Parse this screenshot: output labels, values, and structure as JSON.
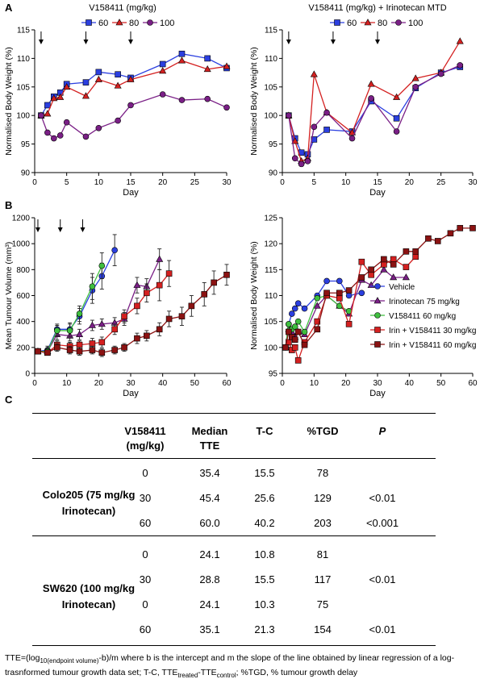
{
  "panel_labels": {
    "a": "A",
    "b": "B",
    "c": "C"
  },
  "colors": {
    "blue": "#2b3fe0",
    "red": "#d42020",
    "purple": "#7a1f86",
    "green": "#3fbf3f",
    "darkred": "#8b1212",
    "black": "#000000"
  },
  "chart_data": [
    {
      "id": "a1",
      "type": "line",
      "title": "V158411 (mg/kg)",
      "legend": [
        "60",
        "80",
        "100"
      ],
      "xlabel": "Day",
      "ylabel": "Normalised Body Weight (%)",
      "xlim": [
        0,
        30
      ],
      "ylim": [
        90,
        115
      ],
      "xticks": [
        0,
        5,
        10,
        15,
        20,
        25,
        30
      ],
      "yticks": [
        90,
        95,
        100,
        105,
        110,
        115
      ],
      "arrows_x": [
        1,
        8,
        15
      ],
      "series": [
        {
          "name": "60",
          "color": "blue",
          "marker": "square",
          "x": [
            1,
            2,
            3,
            4,
            5,
            8,
            10,
            13,
            15,
            20,
            23,
            27,
            30
          ],
          "y": [
            100,
            101.8,
            103.3,
            104,
            105.5,
            105.8,
            107.6,
            107.2,
            106.6,
            109,
            110.8,
            110,
            108.3
          ]
        },
        {
          "name": "80",
          "color": "red",
          "marker": "triangle",
          "x": [
            1,
            2,
            3,
            4,
            5,
            8,
            10,
            13,
            15,
            20,
            23,
            27,
            30
          ],
          "y": [
            100,
            100.3,
            103,
            103.2,
            105,
            103.4,
            106.3,
            105.2,
            106.3,
            107.8,
            109.6,
            108.1,
            108.6
          ]
        },
        {
          "name": "100",
          "color": "purple",
          "marker": "circle",
          "x": [
            1,
            2,
            3,
            4,
            5,
            8,
            10,
            13,
            15,
            20,
            23,
            27,
            30
          ],
          "y": [
            100,
            97,
            96,
            96.5,
            98.8,
            96.3,
            97.8,
            99.1,
            101.8,
            103.7,
            102.7,
            102.9,
            101.4
          ]
        }
      ]
    },
    {
      "id": "a2",
      "type": "line",
      "title": "V158411 (mg/kg) + Irinotecan MTD",
      "legend": [
        "60",
        "80",
        "100"
      ],
      "xlabel": "Day",
      "ylabel": "Normalised Body Weight (%)",
      "xlim": [
        0,
        30
      ],
      "ylim": [
        90,
        115
      ],
      "xticks": [
        0,
        5,
        10,
        15,
        20,
        25,
        30
      ],
      "yticks": [
        90,
        95,
        100,
        105,
        110,
        115
      ],
      "arrows_x": [
        1,
        8,
        15
      ],
      "series": [
        {
          "name": "60",
          "color": "blue",
          "marker": "square",
          "x": [
            1,
            2,
            3,
            4,
            5,
            7,
            11,
            14,
            18,
            21,
            25,
            28
          ],
          "y": [
            100,
            96,
            93.5,
            93.2,
            95.8,
            97.5,
            97.2,
            102.5,
            99.5,
            104.8,
            107.5,
            108.5
          ]
        },
        {
          "name": "80",
          "color": "red",
          "marker": "triangle",
          "x": [
            1,
            2,
            3,
            4,
            5,
            7,
            11,
            14,
            18,
            21,
            25,
            28
          ],
          "y": [
            100,
            95.5,
            92,
            92.5,
            107.2,
            100.5,
            97,
            105.5,
            103.2,
            106.5,
            107.5,
            113
          ]
        },
        {
          "name": "100",
          "color": "purple",
          "marker": "circle",
          "x": [
            1,
            2,
            3,
            4,
            5,
            7,
            11,
            14,
            18,
            21,
            25,
            28
          ],
          "y": [
            100,
            92.5,
            91.5,
            92,
            98,
            100.5,
            96,
            103,
            97.2,
            105,
            107.3,
            108.8
          ]
        }
      ]
    },
    {
      "id": "b1",
      "type": "line",
      "xlabel": "Day",
      "ylabel": "Mean Tumour Volume (mm³)",
      "xlim": [
        0,
        60
      ],
      "ylim": [
        0,
        1200
      ],
      "xticks": [
        0,
        10,
        20,
        30,
        40,
        50,
        60
      ],
      "yticks": [
        0,
        200,
        400,
        600,
        800,
        1000,
        1200
      ],
      "arrows_x": [
        1,
        8,
        15
      ],
      "series": [
        {
          "name": "Vehicle",
          "color": "blue",
          "marker": "circle",
          "x": [
            1,
            4,
            7,
            11,
            14,
            18,
            21,
            25
          ],
          "y": [
            170,
            180,
            340,
            340,
            440,
            640,
            750,
            950
          ],
          "err": [
            10,
            30,
            40,
            50,
            60,
            100,
            100,
            120
          ]
        },
        {
          "name": "Irinotecan 75 mg/kg",
          "color": "purple",
          "marker": "triangle",
          "x": [
            1,
            4,
            7,
            11,
            14,
            18,
            21,
            25,
            28,
            32,
            35,
            39
          ],
          "y": [
            170,
            170,
            300,
            290,
            300,
            370,
            380,
            390,
            420,
            680,
            670,
            880
          ],
          "err": [
            10,
            20,
            40,
            40,
            40,
            40,
            40,
            40,
            50,
            60,
            60,
            80
          ]
        },
        {
          "name": "V158411 60 mg/kg",
          "color": "green",
          "marker": "circle",
          "x": [
            1,
            4,
            7,
            11,
            14,
            18,
            21
          ],
          "y": [
            170,
            170,
            330,
            330,
            460,
            670,
            830
          ],
          "err": [
            10,
            25,
            40,
            50,
            60,
            100,
            100
          ]
        },
        {
          "name": "Irin + V158411 30 mg/kg",
          "color": "red",
          "marker": "square",
          "x": [
            1,
            4,
            7,
            11,
            14,
            18,
            21,
            25,
            28,
            32,
            35,
            39,
            42
          ],
          "y": [
            170,
            160,
            220,
            210,
            220,
            230,
            240,
            340,
            440,
            520,
            620,
            680,
            770
          ],
          "err": [
            10,
            20,
            30,
            30,
            30,
            40,
            40,
            40,
            50,
            60,
            70,
            120,
            100
          ]
        },
        {
          "name": "Irin + V158411 60 mg/kg",
          "color": "darkred",
          "marker": "square",
          "x": [
            1,
            4,
            7,
            11,
            14,
            18,
            21,
            25,
            28,
            32,
            35,
            39,
            42,
            46,
            49,
            53,
            56,
            60
          ],
          "y": [
            170,
            160,
            200,
            180,
            170,
            180,
            160,
            180,
            200,
            270,
            290,
            340,
            420,
            440,
            520,
            610,
            700,
            760
          ],
          "err": [
            10,
            20,
            30,
            30,
            30,
            30,
            30,
            30,
            30,
            40,
            40,
            50,
            60,
            70,
            80,
            90,
            90,
            80
          ]
        }
      ]
    },
    {
      "id": "b2",
      "type": "line",
      "xlabel": "Day",
      "ylabel": "Normalised Body Weight (%)",
      "xlim": [
        0,
        60
      ],
      "ylim": [
        95,
        125
      ],
      "xticks": [
        0,
        10,
        20,
        30,
        40,
        50,
        60
      ],
      "yticks": [
        95,
        100,
        105,
        110,
        115,
        120,
        125
      ],
      "series": [
        {
          "name": "Vehicle",
          "color": "blue",
          "marker": "circle",
          "x": [
            1,
            2,
            3,
            4,
            5,
            7,
            11,
            14,
            18,
            21,
            25
          ],
          "y": [
            100,
            104.5,
            106.5,
            107.5,
            108.5,
            107.5,
            110,
            112.8,
            112.8,
            110,
            110.5
          ]
        },
        {
          "name": "Irinotecan 75 mg/kg",
          "color": "purple",
          "marker": "triangle",
          "x": [
            1,
            2,
            3,
            4,
            5,
            7,
            11,
            14,
            18,
            21,
            25,
            28,
            32,
            35,
            39
          ],
          "y": [
            100,
            103.5,
            103,
            102,
            103,
            102.5,
            108,
            110,
            108,
            106.5,
            113,
            112,
            115,
            113.5,
            113.5
          ]
        },
        {
          "name": "V158411 60 mg/kg",
          "color": "green",
          "marker": "circle",
          "x": [
            1,
            2,
            3,
            4,
            5,
            7,
            11,
            14,
            18,
            21
          ],
          "y": [
            100,
            104.5,
            103.5,
            104,
            105,
            103,
            109.5,
            110,
            108,
            107
          ]
        },
        {
          "name": "Irin + V158411 30 mg/kg",
          "color": "red",
          "marker": "square",
          "x": [
            1,
            2,
            3,
            4,
            5,
            7,
            11,
            14,
            18,
            21,
            25,
            28,
            32,
            35,
            39,
            42
          ],
          "y": [
            100,
            101,
            99.5,
            100,
            97.5,
            101,
            105,
            110,
            109.5,
            104.5,
            116.5,
            114,
            116,
            117,
            115.5,
            117.5
          ]
        },
        {
          "name": "Irin + V158411 60 mg/kg",
          "color": "darkred",
          "marker": "square",
          "x": [
            1,
            2,
            3,
            4,
            5,
            7,
            11,
            14,
            18,
            21,
            25,
            28,
            32,
            35,
            39,
            42,
            46,
            49,
            53,
            56,
            60
          ],
          "y": [
            100,
            103,
            102,
            101.5,
            103,
            100.5,
            103.5,
            110.5,
            110.5,
            111,
            113.5,
            115,
            117,
            116,
            118.5,
            118.5,
            121,
            120.5,
            122,
            123,
            123
          ]
        }
      ]
    }
  ],
  "table": {
    "headers": [
      "V158411\n(mg/kg)",
      "Median\nTTE",
      "T-C",
      "%TGD",
      "P"
    ],
    "groups": [
      {
        "name": "Colo205 (75 mg/kg\nIrinotecan)",
        "rows": [
          [
            "0",
            "35.4",
            "15.5",
            "78",
            ""
          ],
          [
            "30",
            "45.4",
            "25.6",
            "129",
            "<0.01"
          ],
          [
            "60",
            "60.0",
            "40.2",
            "203",
            "<0.001"
          ]
        ]
      },
      {
        "name": "SW620 (100 mg/kg\nIrinotecan)",
        "rows": [
          [
            "0",
            "24.1",
            "10.8",
            "81",
            ""
          ],
          [
            "30",
            "28.8",
            "15.5",
            "117",
            "<0.01"
          ],
          [
            "0",
            "24.1",
            "10.3",
            "75",
            ""
          ],
          [
            "60",
            "35.1",
            "21.3",
            "154",
            "<0.01"
          ]
        ]
      }
    ]
  },
  "footnote": {
    "tte_open": "TTE=(log",
    "tte_sub": "10(endpoint volume)",
    "tte_rest": "-b)/m where b is the intercept and m the slope of the line obtained by linear regression of a log-trasnformed tumour growth data set; T-C, TTE",
    "treated_sub": "treated",
    "dash": "-TTE",
    "control_sub": "control",
    "tail": "; %TGD, % tumour growth delay"
  }
}
